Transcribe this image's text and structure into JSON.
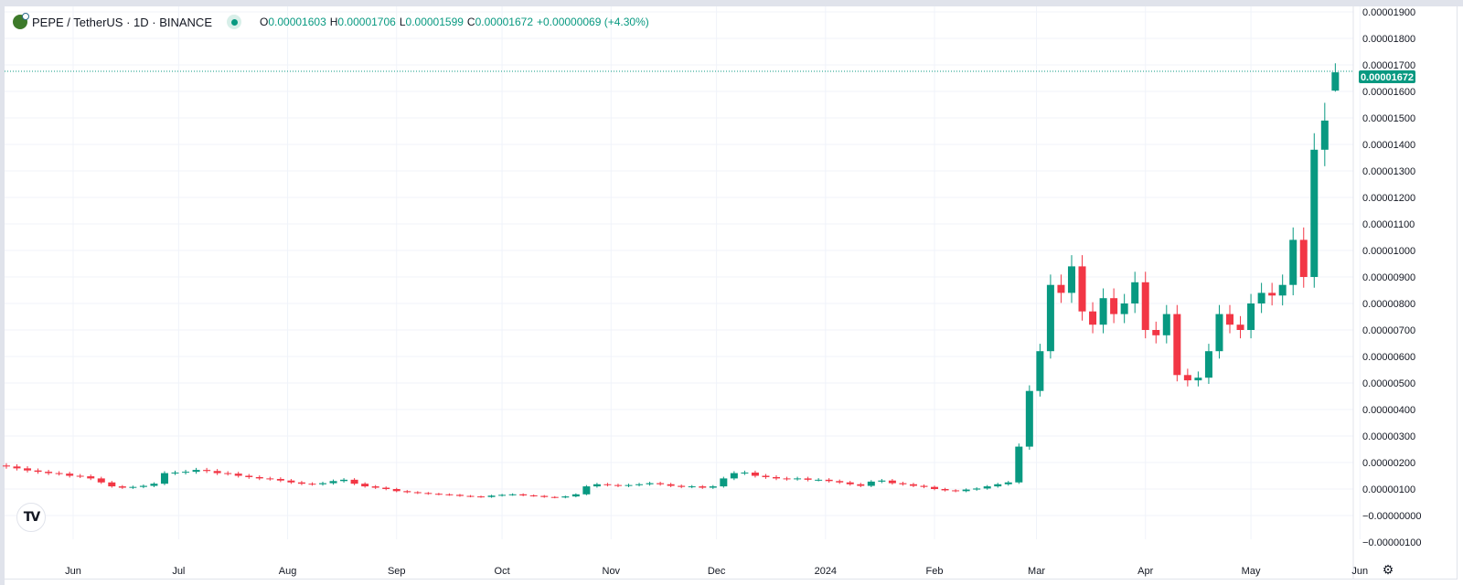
{
  "header": {
    "symbol": "PEPE / TetherUS",
    "interval": "1D",
    "exchange": "BINANCE",
    "title": "PEPE / TetherUS · 1D · BINANCE",
    "open_label": "O",
    "open": "0.00001603",
    "high_label": "H",
    "high": "0.00001706",
    "low_label": "L",
    "low": "0.00001599",
    "close_label": "C",
    "close": "0.00001672",
    "change": "+0.00000069 (+4.30%)"
  },
  "price_label": "0.00001672",
  "logo_text": "TV",
  "settings_icon": "gear-icon",
  "colors": {
    "up": "#089981",
    "down": "#f23645",
    "grid": "#f0f3fa",
    "text": "#131722"
  },
  "chart_data": {
    "type": "candlestick",
    "title": "PEPE / TetherUS · 1D · BINANCE",
    "price_unit": 1e-08,
    "step_days": 3,
    "start_date": "2023-05-13",
    "closes": [
      185,
      178,
      170,
      165,
      160,
      158,
      150,
      148,
      140,
      125,
      110,
      105,
      108,
      112,
      120,
      160,
      162,
      165,
      172,
      168,
      160,
      158,
      150,
      145,
      140,
      138,
      132,
      125,
      120,
      118,
      122,
      130,
      135,
      120,
      110,
      105,
      100,
      92,
      88,
      85,
      82,
      80,
      78,
      74,
      72,
      70,
      75,
      78,
      80,
      76,
      74,
      70,
      68,
      72,
      80,
      110,
      118,
      115,
      112,
      115,
      118,
      122,
      118,
      112,
      108,
      110,
      105,
      110,
      140,
      160,
      162,
      150,
      145,
      140,
      138,
      140,
      135,
      135,
      130,
      125,
      118,
      112,
      128,
      132,
      122,
      118,
      112,
      108,
      100,
      95,
      92,
      98,
      102,
      110,
      118,
      125,
      260,
      470,
      620,
      870,
      840,
      940,
      770,
      720,
      820,
      760,
      800,
      880,
      700,
      680,
      760,
      530,
      510,
      520,
      620,
      760,
      720,
      700,
      800,
      840,
      830,
      870,
      1040,
      900,
      1380,
      1490
    ],
    "last_candle": {
      "o": 1603,
      "h": 1706,
      "l": 1599,
      "c": 1672
    },
    "y_ticks": [
      "0.00001900",
      "0.00001800",
      "0.00001700",
      "0.00001600",
      "0.00001500",
      "0.00001400",
      "0.00001300",
      "0.00001200",
      "0.00001100",
      "0.00001000",
      "0.00000900",
      "0.00000800",
      "0.00000700",
      "0.00000600",
      "0.00000500",
      "0.00000400",
      "0.00000300",
      "0.00000200",
      "0.00000100",
      "−0.00000000",
      "−0.00000100"
    ],
    "y_tick_values": [
      1900,
      1800,
      1700,
      1600,
      1500,
      1400,
      1300,
      1200,
      1100,
      1000,
      900,
      800,
      700,
      600,
      500,
      400,
      300,
      200,
      100,
      0,
      -100
    ],
    "x_ticks": [
      {
        "label": "Jun",
        "day": 19
      },
      {
        "label": "Jul",
        "day": 49
      },
      {
        "label": "Aug",
        "day": 80
      },
      {
        "label": "Sep",
        "day": 111
      },
      {
        "label": "Oct",
        "day": 141
      },
      {
        "label": "Nov",
        "day": 172
      },
      {
        "label": "Dec",
        "day": 202
      },
      {
        "label": "2024",
        "day": 233
      },
      {
        "label": "Feb",
        "day": 264
      },
      {
        "label": "Mar",
        "day": 293
      },
      {
        "label": "Apr",
        "day": 324
      },
      {
        "label": "May",
        "day": 354
      },
      {
        "label": "Jun",
        "day": 385
      }
    ]
  }
}
